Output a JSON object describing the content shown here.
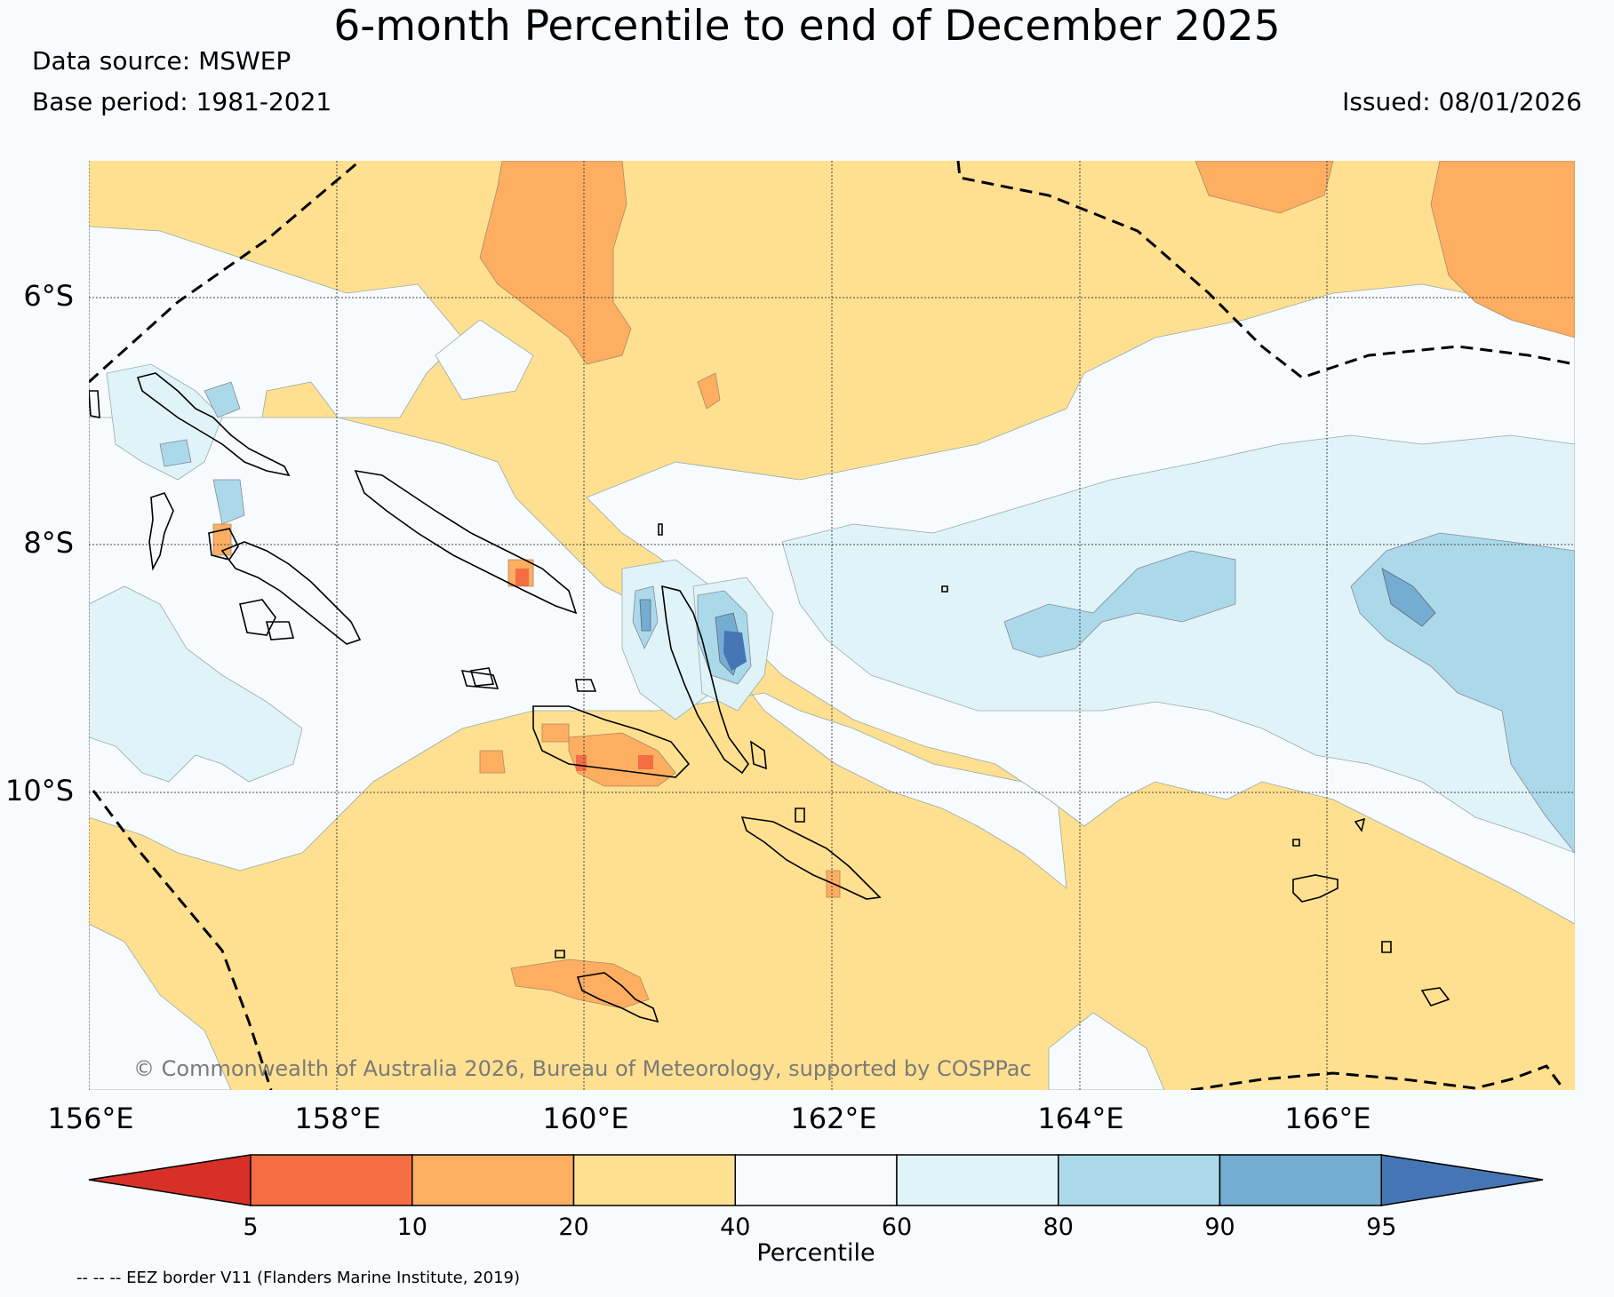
{
  "header": {
    "title": "6-month Percentile to end of December 2025",
    "data_source": "Data source: MSWEP",
    "base_period": "Base period: 1981-2021",
    "issued": "Issued: 08/01/2026"
  },
  "map": {
    "lat_labels": [
      "6°S",
      "8°S",
      "10°S"
    ],
    "lon_labels": [
      "156°E",
      "158°E",
      "160°E",
      "162°E",
      "164°E",
      "166°E"
    ],
    "copyright": "© Commonwealth of Australia 2026, Bureau of Meteorology, supported by COSPPac",
    "background_color": "#fee090",
    "coast_color": "#000000",
    "eez_color": "#000000"
  },
  "colorbar": {
    "label": "Percentile",
    "ticks": [
      "5",
      "10",
      "20",
      "40",
      "60",
      "80",
      "90",
      "95"
    ],
    "colors": [
      "#d73027",
      "#f46d43",
      "#fdae61",
      "#fee090",
      "#f7fbfd",
      "#e0f3f8",
      "#abd9e9",
      "#74add1",
      "#4575b4"
    ]
  },
  "footnote": "-- -- -- EEZ border V11 (Flanders Marine Institute, 2019)"
}
